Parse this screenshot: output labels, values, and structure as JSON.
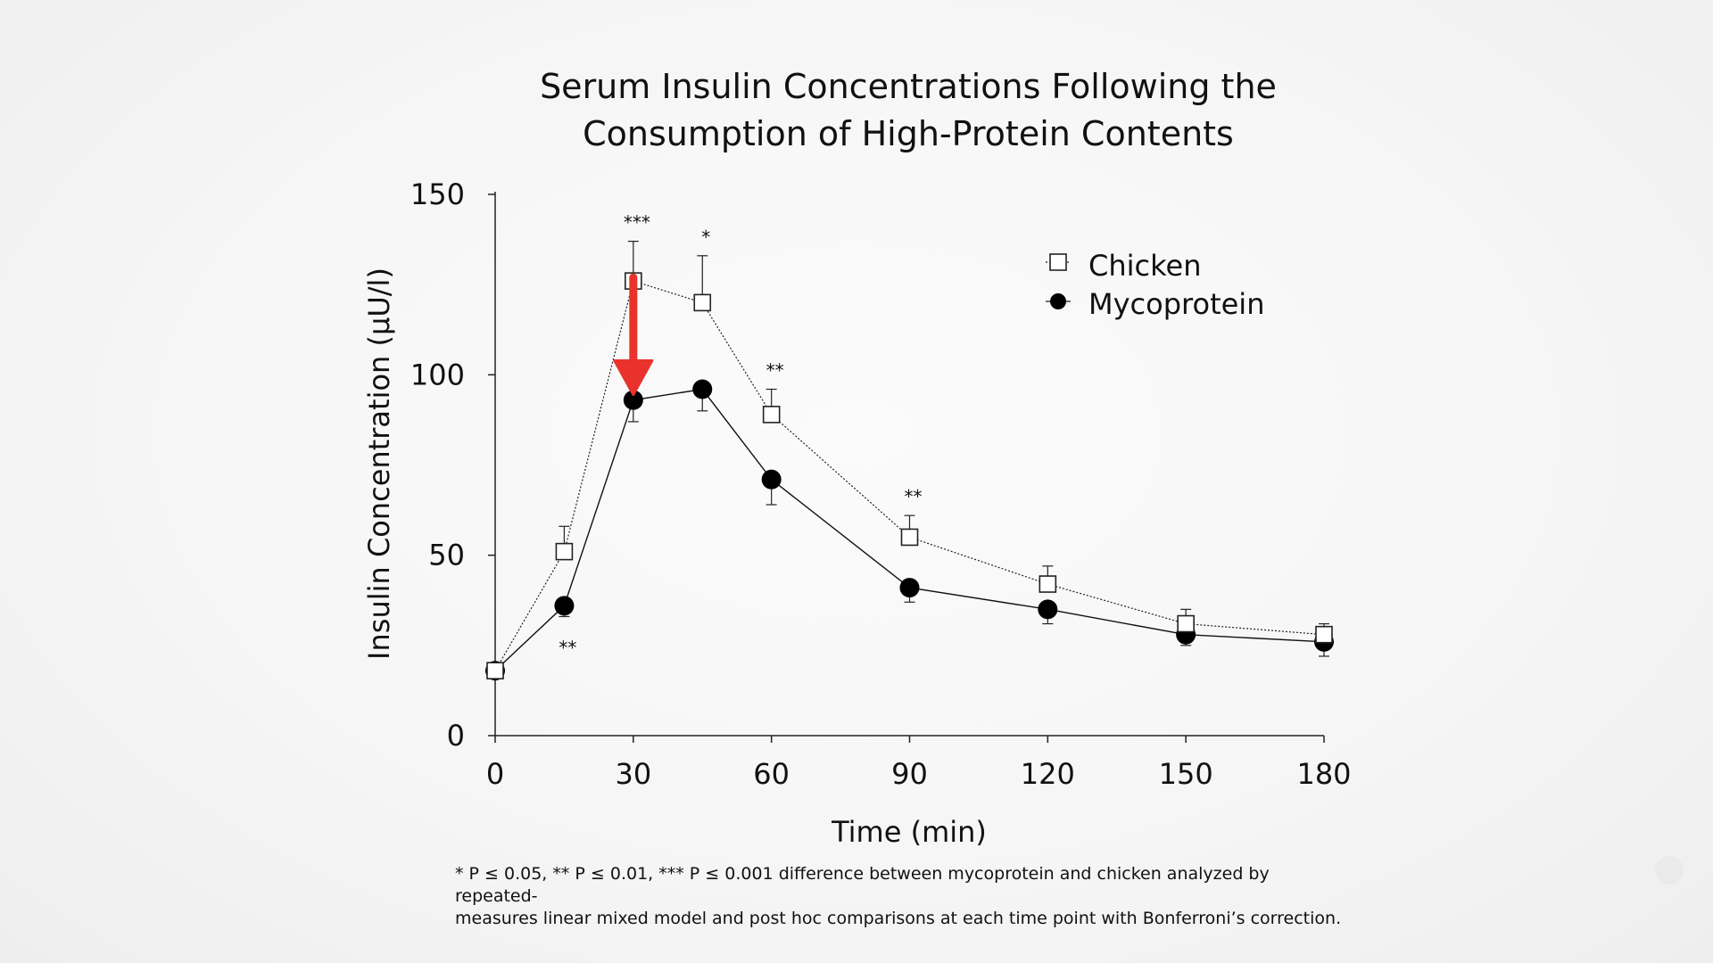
{
  "chart_data": {
    "type": "line",
    "title_lines": [
      "Serum Insulin Concentrations Following the",
      "Consumption of High-Protein Contents"
    ],
    "xlabel": "Time (min)",
    "ylabel": "Insulin Concentration (µU/l)",
    "xlim": [
      0,
      180
    ],
    "ylim": [
      0,
      150
    ],
    "x_ticks": [
      0,
      30,
      60,
      90,
      120,
      150,
      180
    ],
    "y_ticks": [
      0,
      50,
      100,
      150
    ],
    "x": [
      0,
      15,
      30,
      45,
      60,
      90,
      120,
      150,
      180
    ],
    "series": [
      {
        "name": "Chicken",
        "marker": "open-square",
        "line_style": "dotted",
        "values": [
          18,
          51,
          126,
          120,
          89,
          55,
          42,
          31,
          28
        ],
        "error_up": [
          0,
          7,
          11,
          13,
          7,
          6,
          5,
          4,
          3
        ]
      },
      {
        "name": "Mycoprotein",
        "marker": "filled-circle",
        "line_style": "solid",
        "values": [
          18,
          36,
          93,
          96,
          71,
          41,
          35,
          28,
          26
        ],
        "error_down": [
          0,
          3,
          6,
          6,
          7,
          4,
          4,
          3,
          4
        ]
      }
    ],
    "significance": [
      {
        "x": 15,
        "label": "**",
        "position": "below"
      },
      {
        "x": 30,
        "label": "***",
        "position": "above"
      },
      {
        "x": 45,
        "label": "*",
        "position": "above"
      },
      {
        "x": 60,
        "label": "**",
        "position": "above"
      },
      {
        "x": 90,
        "label": "**",
        "position": "above"
      }
    ],
    "annotation": {
      "type": "arrow",
      "color": "#e8322b",
      "x": 30,
      "from_y": 126,
      "to_y": 96
    },
    "legend_position": "top-right"
  },
  "footnote": {
    "line1": "* P ≤ 0.05, ** P ≤ 0.01, *** P ≤ 0.001 difference between mycoprotein and chicken analyzed by repeated-",
    "line2": "measures linear mixed model and post hoc comparisons at each time point with Bonferroni’s correction."
  }
}
